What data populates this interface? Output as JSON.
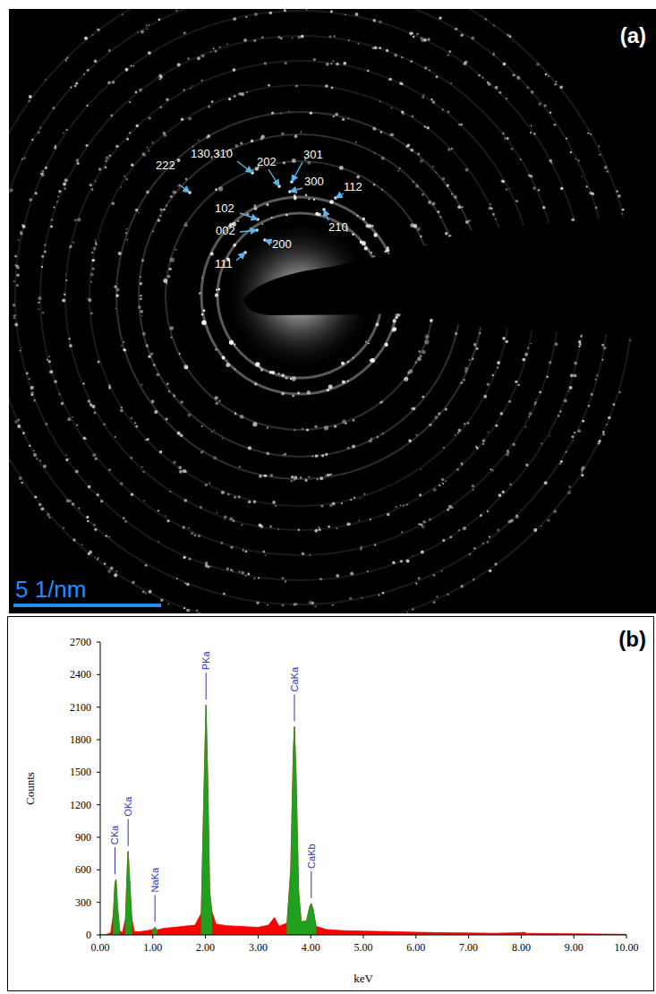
{
  "panel_a": {
    "label": "(a)",
    "scale_bar": {
      "value": 5,
      "label": "5 1/nm"
    },
    "spot_labels": [
      "130,310",
      "202",
      "301",
      "300",
      "112",
      "222",
      "102",
      "002",
      "200",
      "111",
      "210"
    ]
  },
  "chart_data": {
    "type": "area",
    "panel_label": "(b)",
    "xlabel": "keV",
    "ylabel": "Counts",
    "x": [
      0.0,
      0.1,
      0.2,
      0.25,
      0.28,
      0.3,
      0.33,
      0.37,
      0.42,
      0.48,
      0.52,
      0.53,
      0.56,
      0.6,
      0.65,
      0.75,
      0.9,
      1.0,
      1.04,
      1.08,
      1.2,
      1.4,
      1.6,
      1.8,
      1.92,
      1.97,
      2.01,
      2.04,
      2.08,
      2.12,
      2.2,
      2.4,
      2.6,
      2.8,
      3.0,
      3.2,
      3.31,
      3.4,
      3.55,
      3.62,
      3.67,
      3.69,
      3.72,
      3.77,
      3.82,
      3.92,
      3.98,
      4.01,
      4.05,
      4.1,
      4.3,
      4.6,
      5.0,
      5.5,
      6.0,
      6.5,
      7.0,
      7.5,
      8.0,
      8.05,
      8.1,
      8.5,
      9.0,
      9.5,
      10.0
    ],
    "series": [
      {
        "color": "#ff0000",
        "values": [
          0,
          0,
          20,
          200,
          480,
          510,
          250,
          40,
          20,
          150,
          700,
          770,
          500,
          150,
          30,
          30,
          40,
          50,
          70,
          45,
          60,
          70,
          80,
          90,
          200,
          1300,
          2120,
          1500,
          400,
          220,
          100,
          85,
          80,
          75,
          70,
          90,
          160,
          80,
          110,
          600,
          1700,
          1920,
          1500,
          400,
          120,
          130,
          260,
          290,
          230,
          80,
          50,
          40,
          35,
          30,
          25,
          20,
          18,
          15,
          20,
          25,
          15,
          12,
          10,
          8,
          5
        ]
      },
      {
        "color": "#1fa01f",
        "values": [
          null,
          null,
          null,
          200,
          480,
          510,
          250,
          40,
          null,
          150,
          700,
          770,
          500,
          150,
          null,
          null,
          null,
          50,
          70,
          45,
          null,
          null,
          null,
          null,
          200,
          1300,
          2120,
          1500,
          400,
          220,
          null,
          null,
          null,
          null,
          null,
          null,
          null,
          null,
          110,
          600,
          1700,
          1920,
          1500,
          400,
          120,
          130,
          260,
          290,
          230,
          80,
          null,
          null,
          null,
          null,
          null,
          null,
          null,
          null,
          null,
          null,
          null,
          null,
          null,
          null,
          null
        ]
      }
    ],
    "xlim": [
      0,
      10
    ],
    "ylim": [
      0,
      2700
    ],
    "xticks": [
      {
        "value": 0,
        "label": "0.00"
      },
      {
        "value": 1,
        "label": "1.00"
      },
      {
        "value": 2,
        "label": "2.00"
      },
      {
        "value": 3,
        "label": "3.00"
      },
      {
        "value": 4,
        "label": "4.00"
      },
      {
        "value": 5,
        "label": "5.00"
      },
      {
        "value": 6,
        "label": "6.00"
      },
      {
        "value": 7,
        "label": "7.00"
      },
      {
        "value": 8,
        "label": "8.00"
      },
      {
        "value": 9,
        "label": "9.00"
      },
      {
        "value": 10,
        "label": "10.00"
      }
    ],
    "yticks": [
      0,
      300,
      600,
      900,
      1200,
      1500,
      1800,
      2100,
      2400,
      2700
    ],
    "annotations": [
      {
        "text": "CKa",
        "x": 0.28,
        "y": 510
      },
      {
        "text": "OKa",
        "x": 0.53,
        "y": 770
      },
      {
        "text": "NaKa",
        "x": 1.04,
        "y": 70
      },
      {
        "text": "PKa",
        "x": 2.01,
        "y": 2120
      },
      {
        "text": "CaKa",
        "x": 3.69,
        "y": 1920
      },
      {
        "text": "CaKb",
        "x": 4.01,
        "y": 290
      }
    ],
    "grid": false
  }
}
